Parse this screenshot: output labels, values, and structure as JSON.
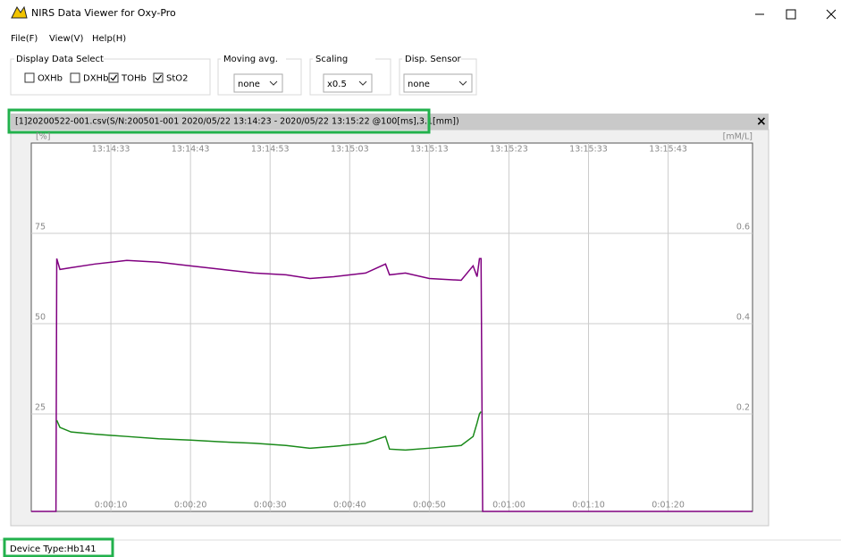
{
  "window": {
    "title": "NIRS Data Viewer for Oxy-Pro"
  },
  "menu": [
    "File(F)",
    "View(V)",
    "Help(H)"
  ],
  "display_select": {
    "title": "Display Data Select",
    "items": [
      {
        "label": "OXHb",
        "color": "#ff0000",
        "checked": false
      },
      {
        "label": "DXHb",
        "color": "#0000ff",
        "checked": false
      },
      {
        "label": "TOHb",
        "color": "#008000",
        "checked": true
      },
      {
        "label": "StO2",
        "color": "#800080",
        "checked": true
      }
    ]
  },
  "controls": [
    {
      "title": "Moving avg.",
      "value": "none"
    },
    {
      "title": "Scaling",
      "value": "x0.5"
    },
    {
      "title": "Disp. Sensor",
      "value": "none"
    }
  ],
  "panel": {
    "title": "[1]20200522-001.csv(S/N:200501-001  2020/05/22 13:14:23 - 2020/05/22 13:15:22 @100[ms],3.1[mm])",
    "close": "×"
  },
  "chart_data": {
    "type": "line",
    "ylabel": "[%]",
    "y2label": "[mM/L]",
    "xlim": [
      0,
      90.6
    ],
    "ylim": [
      -2,
      100
    ],
    "y2lim": [
      -0.016,
      0.8
    ],
    "xticks": [
      {
        "value": 10,
        "label": "0:00:10"
      },
      {
        "value": 20,
        "label": "0:00:20"
      },
      {
        "value": 30,
        "label": "0:00:30"
      },
      {
        "value": 40,
        "label": "0:00:40"
      },
      {
        "value": 50,
        "label": "0:00:50"
      },
      {
        "value": 60,
        "label": "0:01:00"
      },
      {
        "value": 70,
        "label": "0:01:10"
      },
      {
        "value": 80,
        "label": "0:01:20"
      }
    ],
    "x2ticks": [
      {
        "value": 10,
        "label": "13:14:33"
      },
      {
        "value": 20,
        "label": "13:14:43"
      },
      {
        "value": 30,
        "label": "13:14:53"
      },
      {
        "value": 40,
        "label": "13:15:03"
      },
      {
        "value": 50,
        "label": "13:15:13"
      },
      {
        "value": 60,
        "label": "13:15:23"
      },
      {
        "value": 70,
        "label": "13:15:33"
      },
      {
        "value": 80,
        "label": "13:15:43"
      }
    ],
    "yticks": [
      25,
      50,
      75
    ],
    "y2ticks": [
      0.2,
      0.4,
      0.6
    ],
    "grid": true,
    "x": [
      0,
      3.1,
      3.2,
      3.6,
      5,
      8,
      12,
      16,
      20,
      24,
      28,
      32,
      35,
      38,
      42,
      44.5,
      45,
      47,
      50,
      54,
      55.5,
      56,
      56.3,
      56.5,
      56.7,
      60,
      90.6
    ],
    "series": [
      {
        "color": "#800080",
        "axis": "y",
        "values": [
          -2,
          -2,
          68,
          65,
          65.5,
          66.5,
          67.5,
          67,
          66,
          65,
          64,
          63.5,
          62.5,
          63,
          64,
          66.5,
          63.5,
          64,
          62.5,
          62,
          66,
          63,
          68,
          68,
          -2,
          -2,
          -2
        ]
      },
      {
        "color": "#1a8a1a",
        "axis": "y2",
        "values": [
          null,
          null,
          0.186,
          0.17,
          0.16,
          0.155,
          0.15,
          0.145,
          0.142,
          0.138,
          0.135,
          0.13,
          0.124,
          0.128,
          0.135,
          0.15,
          0.122,
          0.12,
          0.124,
          0.13,
          0.15,
          0.18,
          0.2,
          0.205,
          null,
          null,
          null
        ]
      }
    ]
  },
  "status": "Device Type:Hb141"
}
